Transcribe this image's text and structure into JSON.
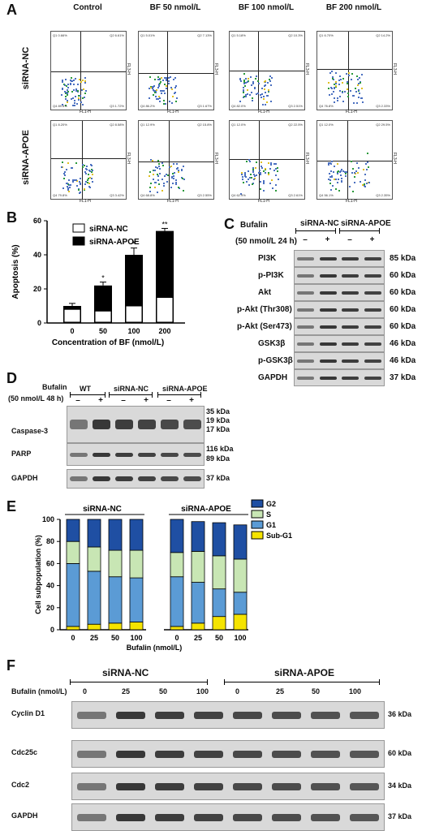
{
  "panel_A": {
    "letter": "A",
    "columns": [
      "Control",
      "BF 50 nmol/L",
      "BF 100 nmol/L",
      "BF 200 nmol/L"
    ],
    "rows": [
      "siRNA-NC",
      "siRNA-APOE"
    ],
    "axis_x": "FL1-H",
    "axis_y": "FL3-H",
    "quadrants": [
      [
        [
          "Q1 0.66%",
          "Q2 6.61%",
          "Q4 89.6%",
          "Q3 1.72%"
        ],
        [
          "Q1 5.01%",
          "Q2 7.13%",
          "Q4 86.2%",
          "Q3 1.67%"
        ],
        [
          "Q1 5.18%",
          "Q2 10.3%",
          "Q4 82.0%",
          "Q3 2.51%"
        ],
        [
          "Q1 6.70%",
          "Q2 14.2%",
          "Q4 76.8%",
          "Q3 2.33%"
        ]
      ],
      [
        [
          "Q1 8.20%",
          "Q2 8.58%",
          "Q4 79.8%",
          "Q3 3.42%"
        ],
        [
          "Q1 12.9%",
          "Q2 15.8%",
          "Q4 68.8%",
          "Q3 2.55%"
        ],
        [
          "Q1 12.0%",
          "Q2 22.5%",
          "Q4 62.9%",
          "Q3 2.61%"
        ],
        [
          "Q1 12.0%",
          "Q2 29.5%",
          "Q4 56.1%",
          "Q3 2.35%"
        ]
      ]
    ]
  },
  "panel_B": {
    "letter": "B",
    "chart_data": {
      "type": "bar",
      "categories": [
        "0",
        "50",
        "100",
        "200"
      ],
      "series": [
        {
          "name": "siRNA-NC",
          "values": [
            8,
            7,
            10,
            15
          ],
          "color": "#ffffff"
        },
        {
          "name": "siRNA-APOE",
          "values": [
            10,
            22,
            40,
            54
          ],
          "color": "#000000"
        }
      ],
      "error": [
        1.5,
        2,
        4,
        1.5
      ],
      "significance": [
        "",
        "*",
        "*",
        "**"
      ],
      "xlabel": "Concentration of BF (nmol/L)",
      "ylabel": "Apoptosis (%)",
      "yticks": [
        "0",
        "20",
        "40",
        "60"
      ],
      "ylim": [
        0,
        60
      ]
    }
  },
  "panel_C": {
    "letter": "C",
    "treatment_label": "Bufalin",
    "treatment_dose": "(50 nmol/L 24 h)",
    "groups": [
      "siRNA-NC",
      "siRNA-APOE"
    ],
    "lanes": [
      "–",
      "+",
      "–",
      "+"
    ],
    "rows": [
      {
        "label": "PI3K",
        "kda": "85 kDa"
      },
      {
        "label": "p-PI3K",
        "kda": "60 kDa"
      },
      {
        "label": "Akt",
        "kda": "60 kDa"
      },
      {
        "label": "p-Akt (Thr308)",
        "kda": "60 kDa"
      },
      {
        "label": "p-Akt (Ser473)",
        "kda": "60 kDa"
      },
      {
        "label": "GSK3β",
        "kda": "46 kDa"
      },
      {
        "label": "p-GSK3β",
        "kda": "46 kDa"
      },
      {
        "label": "GAPDH",
        "kda": "37 kDa"
      }
    ]
  },
  "panel_D": {
    "letter": "D",
    "treatment_label": "Bufalin",
    "treatment_dose": "(50 nmol/L 48 h)",
    "groups": [
      "WT",
      "siRNA-NC",
      "siRNA-APOE"
    ],
    "lanes": [
      "–",
      "+",
      "–",
      "+",
      "–",
      "+"
    ],
    "rows": [
      {
        "label": "Caspase-3",
        "kda": [
          "35 kDa",
          "19 kDa",
          "17 kDa"
        ]
      },
      {
        "label": "PARP",
        "kda": [
          "116 kDa",
          "89 kDa"
        ]
      },
      {
        "label": "GAPDH",
        "kda": [
          "37 kDa"
        ]
      }
    ]
  },
  "panel_E": {
    "letter": "E",
    "groups": [
      "siRNA-NC",
      "siRNA-APOE"
    ],
    "chart_data": {
      "type": "bar",
      "stacked": true,
      "categories": [
        "0",
        "25",
        "50",
        "100",
        "0",
        "25",
        "50",
        "100"
      ],
      "series": [
        {
          "name": "Sub-G1",
          "values": [
            3,
            5,
            6,
            7,
            3,
            6,
            12,
            14
          ],
          "color": "#f5e400"
        },
        {
          "name": "G1",
          "values": [
            57,
            48,
            42,
            40,
            45,
            37,
            25,
            20
          ],
          "color": "#5b9bd5"
        },
        {
          "name": "S",
          "values": [
            20,
            22,
            24,
            25,
            22,
            28,
            30,
            30
          ],
          "color": "#c8e6b4"
        },
        {
          "name": "G2",
          "values": [
            20,
            25,
            28,
            28,
            30,
            27,
            30,
            31
          ],
          "color": "#1f4fa3"
        }
      ],
      "xlabel": "Bufalin (nmol/L)",
      "ylabel": "Cell subpopulation (%)",
      "yticks": [
        "0",
        "20",
        "40",
        "60",
        "80",
        "100"
      ],
      "ylim": [
        0,
        100
      ],
      "legend": [
        "G2",
        "S",
        "G1",
        "Sub-G1"
      ]
    }
  },
  "panel_F": {
    "letter": "F",
    "treatment_label": "Bufalin (nmol/L)",
    "groups": [
      "siRNA-NC",
      "siRNA-APOE"
    ],
    "lanes": [
      "0",
      "25",
      "50",
      "100",
      "0",
      "25",
      "50",
      "100"
    ],
    "rows": [
      {
        "label": "Cyclin D1",
        "kda": "36 kDa"
      },
      {
        "label": "Cdc25c",
        "kda": "60 kDa"
      },
      {
        "label": "Cdc2",
        "kda": "34 kDa"
      },
      {
        "label": "GAPDH",
        "kda": "37 kDa"
      }
    ]
  }
}
